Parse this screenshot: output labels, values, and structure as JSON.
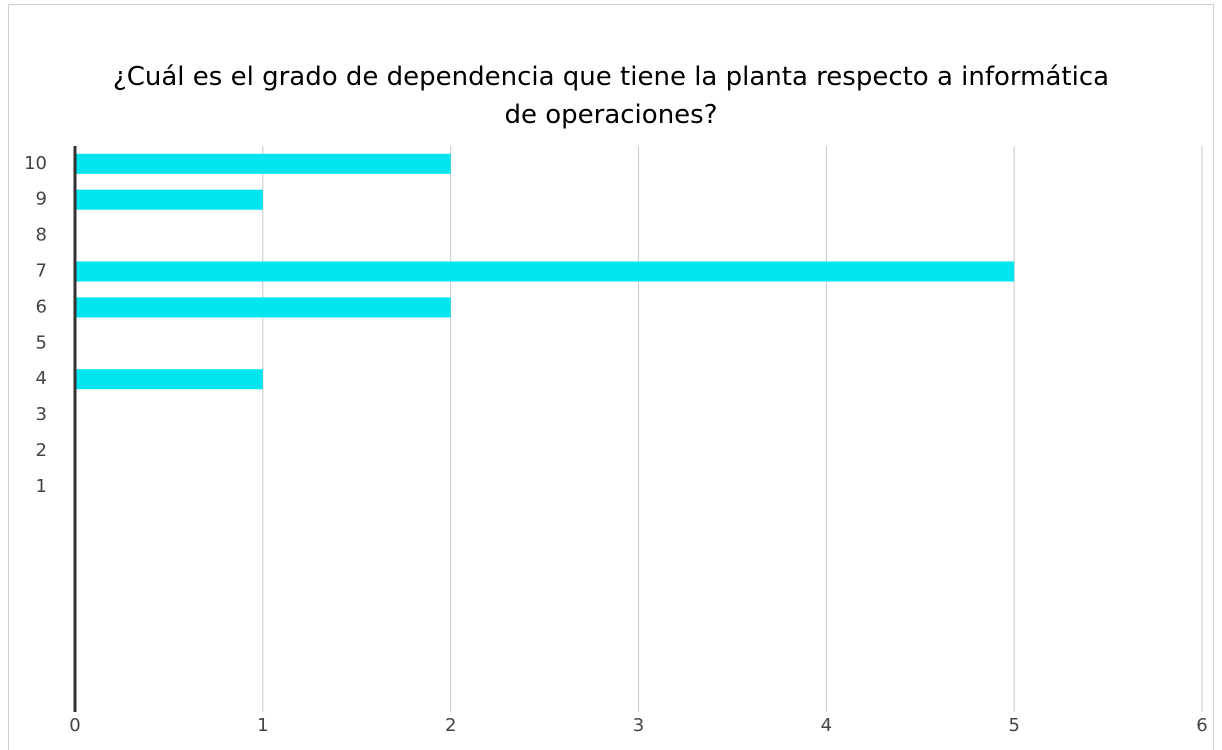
{
  "chart_data": {
    "type": "bar",
    "orientation": "horizontal",
    "title": "¿Cuál es el grado de dependencia que tiene la planta respecto a informática de operaciones?",
    "categories": [
      "10",
      "9",
      "8",
      "7",
      "6",
      "5",
      "4",
      "3",
      "2",
      "1",
      null,
      null,
      null,
      null,
      null,
      null
    ],
    "values": [
      2,
      1,
      0,
      5,
      2,
      0,
      1,
      0,
      0,
      0,
      null,
      null,
      null,
      null,
      null,
      null
    ],
    "color": "#00e5ee",
    "xlim": [
      0,
      6
    ],
    "xticks": [
      0,
      1,
      2,
      3,
      4,
      5,
      6
    ],
    "grid": true
  }
}
